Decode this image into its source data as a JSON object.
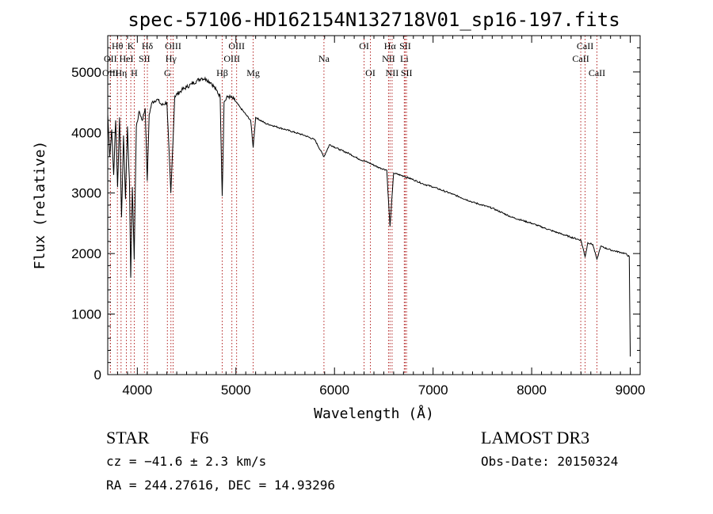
{
  "chart_data": {
    "type": "line",
    "title": "spec-57106-HD162154N132718V01_sp16-197.fits",
    "xlabel": "Wavelength (Å)",
    "ylabel": "Flux (relative)",
    "xlim": [
      3700,
      9100
    ],
    "ylim": [
      0,
      5600
    ],
    "xticks": [
      4000,
      5000,
      6000,
      7000,
      8000,
      9000
    ],
    "yticks": [
      0,
      1000,
      2000,
      3000,
      4000,
      5000
    ],
    "xtick_labels": [
      "4000",
      "5000",
      "6000",
      "7000",
      "8000",
      "9000"
    ],
    "ytick_labels": [
      "0",
      "1000",
      "2000",
      "3000",
      "4000",
      "5000"
    ],
    "grid": false,
    "series": [
      {
        "name": "spectrum",
        "x": [
          3700,
          3720,
          3740,
          3760,
          3780,
          3800,
          3820,
          3840,
          3860,
          3880,
          3900,
          3920,
          3933,
          3950,
          3968,
          3990,
          4020,
          4050,
          4080,
          4101,
          4120,
          4150,
          4200,
          4250,
          4300,
          4340,
          4380,
          4450,
          4500,
          4550,
          4600,
          4650,
          4700,
          4750,
          4800,
          4840,
          4861,
          4880,
          4920,
          4980,
          5050,
          5100,
          5150,
          5175,
          5200,
          5300,
          5400,
          5500,
          5600,
          5700,
          5800,
          5893,
          5950,
          6050,
          6150,
          6250,
          6350,
          6450,
          6530,
          6563,
          6600,
          6700,
          6800,
          6900,
          7000,
          7200,
          7400,
          7600,
          7800,
          8000,
          8200,
          8400,
          8500,
          8542,
          8570,
          8620,
          8662,
          8700,
          8800,
          8900,
          8950,
          8990,
          9000
        ],
        "values": [
          4300,
          3600,
          4050,
          3300,
          4200,
          3100,
          4250,
          2600,
          3950,
          2900,
          4100,
          3200,
          1600,
          3100,
          1900,
          4100,
          4350,
          4200,
          4400,
          3200,
          4300,
          4500,
          4550,
          4450,
          4500,
          3000,
          4600,
          4700,
          4750,
          4800,
          4850,
          4900,
          4880,
          4820,
          4700,
          4600,
          2950,
          4500,
          4600,
          4550,
          4400,
          4300,
          4200,
          3750,
          4250,
          4150,
          4100,
          4050,
          4000,
          3950,
          3880,
          3600,
          3800,
          3720,
          3650,
          3560,
          3500,
          3420,
          3380,
          2450,
          3330,
          3280,
          3220,
          3150,
          3100,
          2980,
          2850,
          2750,
          2600,
          2500,
          2380,
          2270,
          2220,
          1950,
          2180,
          2150,
          1900,
          2120,
          2060,
          2020,
          2000,
          1950,
          300
        ]
      }
    ],
    "spectral_lines": [
      {
        "label": "Hθ",
        "wl": 3798,
        "row": 1
      },
      {
        "label": "OII",
        "wl": 3727,
        "row": 2
      },
      {
        "label": "OIII",
        "wl": 3727,
        "row": 3
      },
      {
        "label": "K",
        "wl": 3934,
        "row": 1
      },
      {
        "label": "HeI",
        "wl": 3889,
        "row": 2
      },
      {
        "label": "Hη",
        "wl": 3835,
        "row": 3
      },
      {
        "label": "H",
        "wl": 3969,
        "row": 3
      },
      {
        "label": "Hδ",
        "wl": 4102,
        "row": 1
      },
      {
        "label": "SII",
        "wl": 4072,
        "row": 2
      },
      {
        "label": "OIII",
        "wl": 4363,
        "row": 1
      },
      {
        "label": "Hγ",
        "wl": 4341,
        "row": 2
      },
      {
        "label": "G",
        "wl": 4305,
        "row": 3
      },
      {
        "label": "Hβ",
        "wl": 4861,
        "row": 3
      },
      {
        "label": "OIII",
        "wl": 5007,
        "row": 1
      },
      {
        "label": "OIII",
        "wl": 4959,
        "row": 2
      },
      {
        "label": "Mg",
        "wl": 5175,
        "row": 3
      },
      {
        "label": "Na",
        "wl": 5893,
        "row": 2
      },
      {
        "label": "OI",
        "wl": 6300,
        "row": 1
      },
      {
        "label": "OI",
        "wl": 6364,
        "row": 3
      },
      {
        "label": "Hα",
        "wl": 6563,
        "row": 1
      },
      {
        "label": "NII",
        "wl": 6548,
        "row": 2
      },
      {
        "label": "NII",
        "wl": 6584,
        "row": 3
      },
      {
        "label": "SII",
        "wl": 6717,
        "row": 1
      },
      {
        "label": "Li",
        "wl": 6708,
        "row": 2
      },
      {
        "label": "SII",
        "wl": 6731,
        "row": 3
      },
      {
        "label": "CaII",
        "wl": 8542,
        "row": 1
      },
      {
        "label": "CaII",
        "wl": 8498,
        "row": 2
      },
      {
        "label": "CaII",
        "wl": 8662,
        "row": 3
      }
    ]
  },
  "info": {
    "class": "STAR",
    "subclass": "F6",
    "survey": "LAMOST DR3",
    "cz": "cz = −41.6 ± 2.3 km/s",
    "obs_date": "Obs-Date: 20150324",
    "coords": "RA = 244.27616, DEC =  14.93296"
  },
  "colors": {
    "axis": "#000000",
    "spectrum": "#000000",
    "line_marker": "#b22222"
  }
}
